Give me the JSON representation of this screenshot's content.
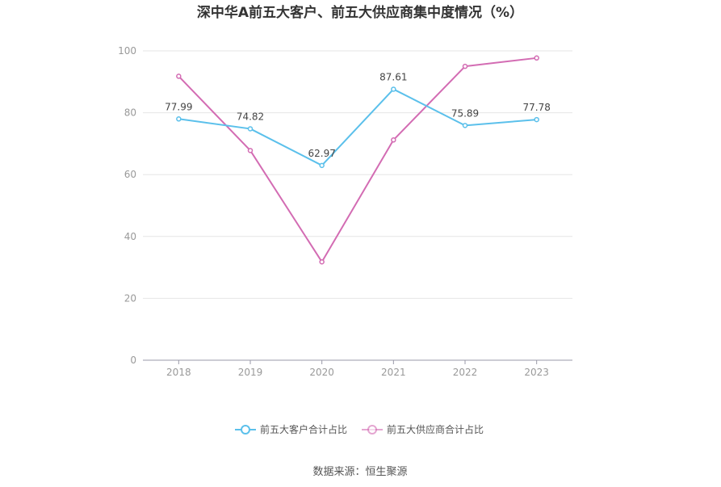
{
  "chart_data": {
    "type": "line",
    "title": "深中华A前五大客户、前五大供应商集中度情况（%）",
    "categories": [
      "2018",
      "2019",
      "2020",
      "2021",
      "2022",
      "2023"
    ],
    "ylim": [
      0,
      100
    ],
    "yticks": [
      0,
      20,
      40,
      60,
      80,
      100
    ],
    "grid": true,
    "legend_position": "bottom",
    "series": [
      {
        "name": "前五大客户合计占比",
        "color": "#5bc0eb",
        "values": [
          77.99,
          74.82,
          62.97,
          87.61,
          75.89,
          77.78
        ],
        "labels": [
          "77.99",
          "74.82",
          "62.97",
          "87.61",
          "75.89",
          "77.78"
        ]
      },
      {
        "name": "前五大供应商合计占比",
        "color": "#d36cb3",
        "values": [
          91.8,
          67.8,
          31.8,
          71.2,
          95.0,
          97.7
        ],
        "labels": []
      }
    ]
  },
  "source": "数据来源：恒生聚源"
}
